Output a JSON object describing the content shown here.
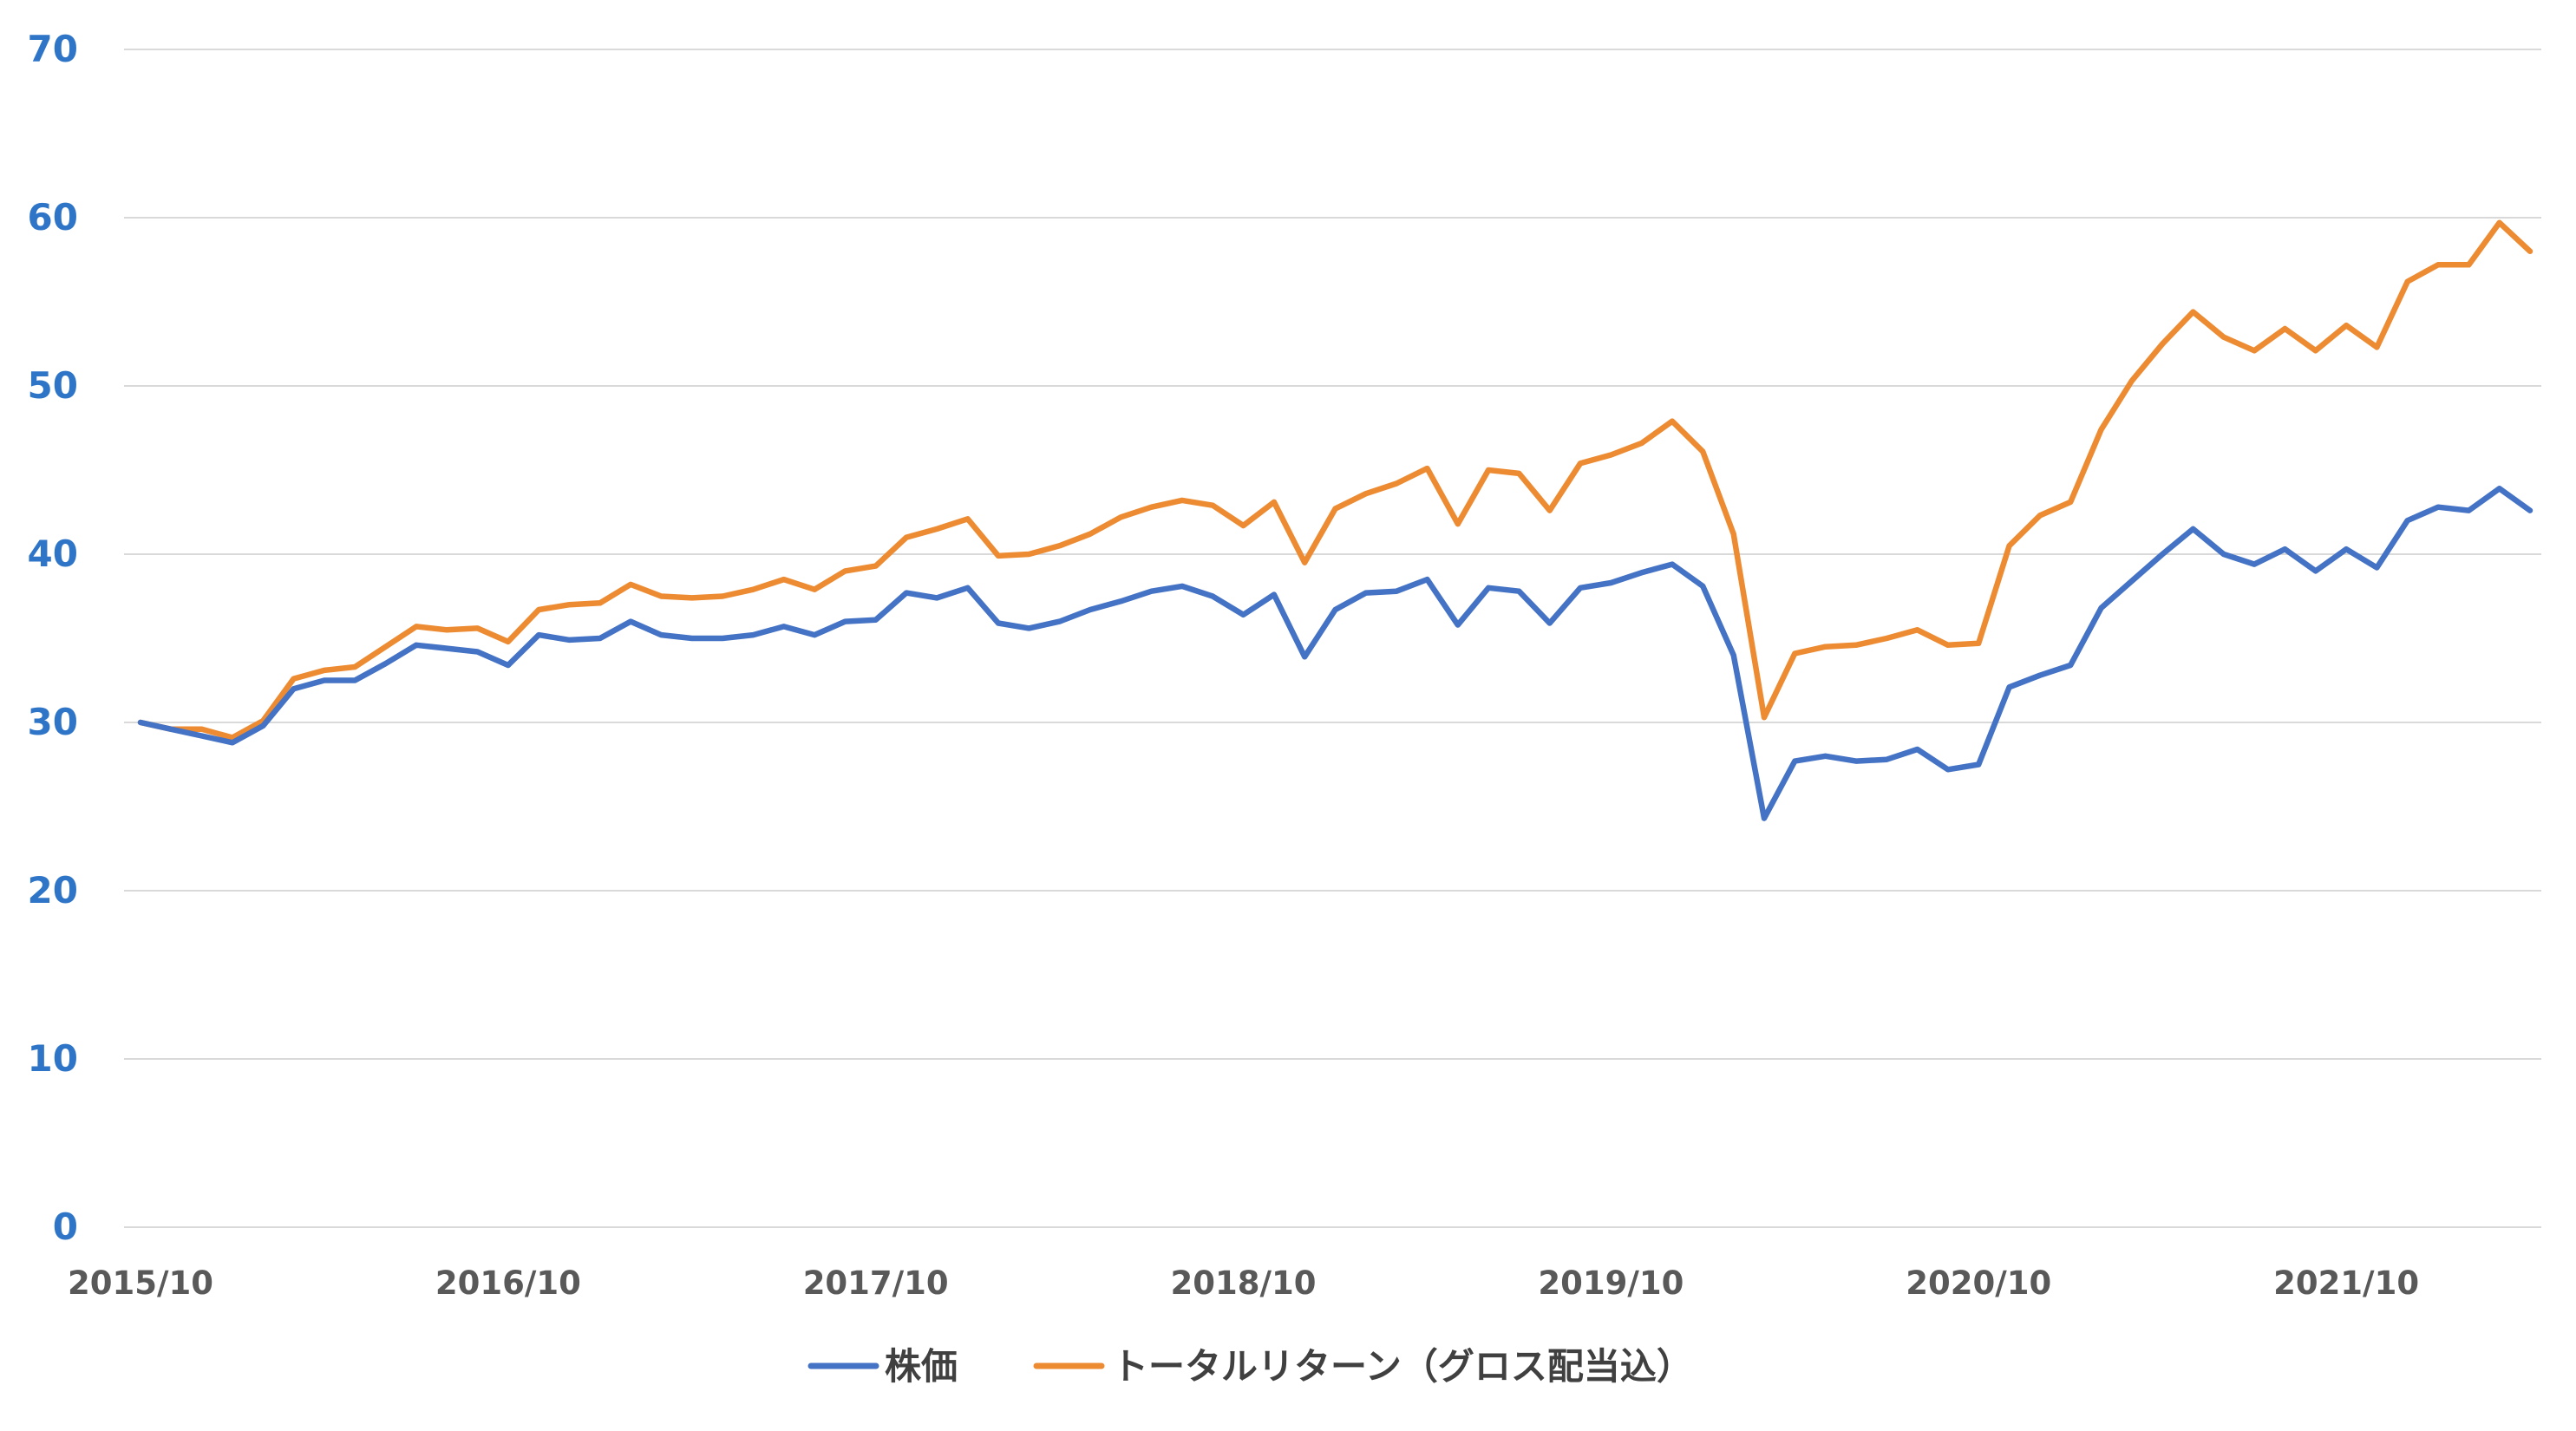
{
  "chart_data": {
    "type": "line",
    "title": "",
    "xlabel": "",
    "ylabel": "",
    "ylim": [
      0,
      70
    ],
    "y_ticks": [
      "0",
      "10",
      "20",
      "30",
      "40",
      "50",
      "60",
      "70"
    ],
    "x_tick_labels": [
      "2015/10",
      "2016/10",
      "2017/10",
      "2018/10",
      "2019/10",
      "2020/10",
      "2021/10"
    ],
    "x_start": "2015/10",
    "x_frequency": "monthly",
    "grid": true,
    "legend_position": "bottom",
    "colors": {
      "ytick": "#2E75C8",
      "xtick": "#595959",
      "grid": "#D9D9D9",
      "axis": "#D9D9D9",
      "legend_text": "#404040"
    },
    "series": [
      {
        "name": "株価",
        "color": "#4472C4",
        "values": [
          30.0,
          29.6,
          29.2,
          28.8,
          29.8,
          32.0,
          32.5,
          32.5,
          33.5,
          34.6,
          34.4,
          34.2,
          33.4,
          35.2,
          34.9,
          35.0,
          36.0,
          35.2,
          35.0,
          35.0,
          35.2,
          35.7,
          35.2,
          36.0,
          36.1,
          37.7,
          37.4,
          38.0,
          35.9,
          35.6,
          36.0,
          36.7,
          37.2,
          37.8,
          38.1,
          37.5,
          36.4,
          37.6,
          33.9,
          36.7,
          37.7,
          37.8,
          38.5,
          35.8,
          38.0,
          37.8,
          35.9,
          38.0,
          38.3,
          38.9,
          39.4,
          38.1,
          34.0,
          24.3,
          27.7,
          28.0,
          27.7,
          27.8,
          28.4,
          27.2,
          27.5,
          32.1,
          32.8,
          33.4,
          36.8,
          38.4,
          40.0,
          41.5,
          40.0,
          39.4,
          40.3,
          39.0,
          40.3,
          39.2,
          42.0,
          42.8,
          42.6,
          43.9,
          42.6
        ]
      },
      {
        "name": "トータルリターン（グロス配当込）",
        "color": "#ED8B32",
        "values": [
          30.0,
          29.6,
          29.6,
          29.1,
          30.1,
          32.6,
          33.1,
          33.3,
          34.5,
          35.7,
          35.5,
          35.6,
          34.8,
          36.7,
          37.0,
          37.1,
          38.2,
          37.5,
          37.4,
          37.5,
          37.9,
          38.5,
          37.9,
          39.0,
          39.3,
          41.0,
          41.5,
          42.1,
          39.9,
          40.0,
          40.5,
          41.2,
          42.2,
          42.8,
          43.2,
          42.9,
          41.7,
          43.1,
          39.5,
          42.7,
          43.6,
          44.2,
          45.1,
          41.8,
          45.0,
          44.8,
          42.6,
          45.4,
          45.9,
          46.6,
          47.9,
          46.1,
          41.2,
          30.3,
          34.1,
          34.5,
          34.6,
          35.0,
          35.5,
          34.6,
          34.7,
          40.5,
          42.3,
          43.1,
          47.4,
          50.3,
          52.5,
          54.4,
          52.9,
          52.1,
          53.4,
          52.1,
          53.6,
          52.3,
          56.2,
          57.2,
          57.2,
          59.7,
          58.0
        ]
      }
    ]
  }
}
